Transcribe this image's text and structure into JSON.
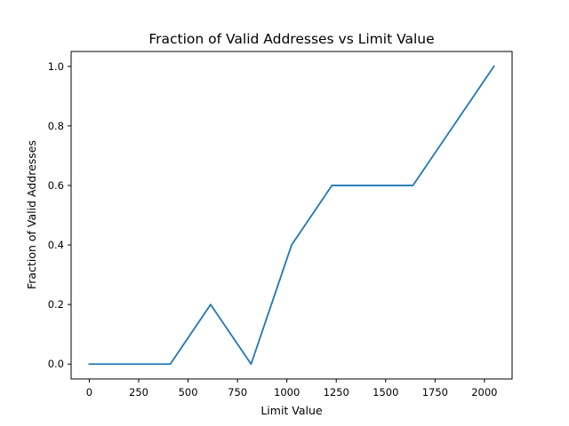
{
  "chart_data": {
    "type": "line",
    "title": "Fraction of Valid Addresses vs Limit Value",
    "xlabel": "Limit Value",
    "ylabel": "Fraction of Valid Addresses",
    "xlim": [
      -92,
      2140
    ],
    "ylim": [
      -0.05,
      1.05
    ],
    "xticks": [
      0,
      250,
      500,
      750,
      1000,
      1250,
      1500,
      1750,
      2000
    ],
    "yticks": [
      0.0,
      0.2,
      0.4,
      0.6,
      0.8,
      1.0
    ],
    "ytick_labels": [
      "0.0",
      "0.2",
      "0.4",
      "0.6",
      "0.8",
      "1.0"
    ],
    "grid": false,
    "series": [
      {
        "color": "#1f77b4",
        "x": [
          0,
          205,
          410,
          614,
          819,
          1024,
          1228,
          1433,
          1638,
          2048
        ],
        "y": [
          0.0,
          0.0,
          0.0,
          0.2,
          0.0,
          0.4,
          0.6,
          0.6,
          0.6,
          1.0
        ]
      }
    ]
  }
}
